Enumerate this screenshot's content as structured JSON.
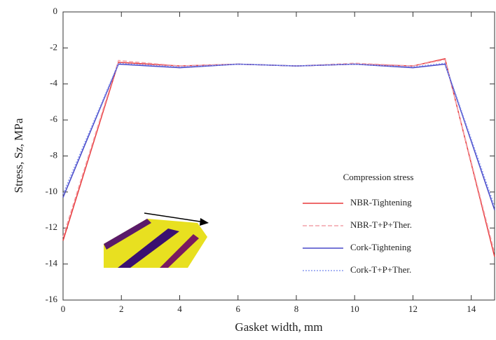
{
  "chart_data": {
    "type": "line",
    "x_label": "Gasket width, mm",
    "y_label": "Stress, Sz, MPa",
    "legend_title": "Compression stress",
    "x": [
      0,
      1.9,
      4,
      6,
      8,
      10,
      12,
      13.1,
      14.8
    ],
    "series": [
      {
        "name": "NBR-Tightening",
        "color": "#e8383a",
        "dash": "solid",
        "values": [
          -12.7,
          -2.8,
          -3.0,
          -2.9,
          -3.0,
          -2.9,
          -3.0,
          -2.6,
          -13.6
        ]
      },
      {
        "name": "NBR-T+P+Ther.",
        "color": "#f2a0a8",
        "dash": "dashed",
        "values": [
          -12.5,
          -2.7,
          -3.0,
          -2.9,
          -3.0,
          -2.85,
          -3.0,
          -2.65,
          -13.4
        ]
      },
      {
        "name": "Cork-Tightening",
        "color": "#4848c8",
        "dash": "solid",
        "values": [
          -10.3,
          -2.9,
          -3.1,
          -2.9,
          -3.0,
          -2.9,
          -3.1,
          -2.9,
          -11.0
        ]
      },
      {
        "name": "Cork-T+P+Ther.",
        "color": "#8c9cf0",
        "dash": "dotted",
        "values": [
          -10.1,
          -2.85,
          -3.05,
          -2.9,
          -3.0,
          -2.9,
          -3.05,
          -2.85,
          -10.8
        ]
      }
    ],
    "xlim": [
      0,
      14.8
    ],
    "xticks": [
      0,
      2,
      4,
      6,
      8,
      10,
      12,
      14
    ],
    "ylim": [
      -16,
      0
    ],
    "yticks": [
      -16,
      -14,
      -12,
      -10,
      -8,
      -6,
      -4,
      -2,
      0
    ],
    "grid": false,
    "legend_position": "lower right"
  }
}
